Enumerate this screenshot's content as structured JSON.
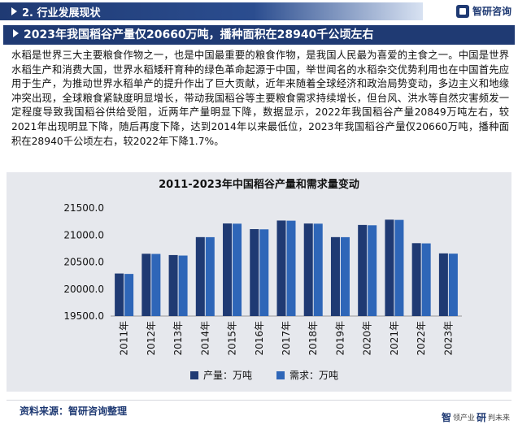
{
  "section": {
    "title": "2. 行业发展现状"
  },
  "logo": {
    "text": "智研咨询"
  },
  "headline": "2023年我国稻谷产量仅20660万吨，播种面积在28940千公顷左右",
  "paragraph": "水稻是世界三大主要粮食作物之一，也是中国最重要的粮食作物，是我国人民最为喜爱的主食之一。中国是世界水稻生产和消费大国，世界水稻矮秆育种的绿色革命起源于中国，举世闻名的水稻杂交优势利用也在中国首先应用于生产，为推动世界水稻单产的提升作出了巨大贡献，近年来随着全球经济和政治局势变动，多边主义和地缘冲突出现，全球粮食紧缺度明显增长，带动我国稻谷等主要粮食需求持续增长，但台风、洪水等自然灾害频发一定程度导致我国稻谷供给受阻，近两年产量明显下降，数据显示，2022年我国稻谷产量20849万吨左右，较2021年出现明显下降，随后再度下降，达到2014年以来最低位，2023年我国稻谷产量仅20660万吨，播种面积在28940千公顷左右，较2022年下降1.7%。",
  "colors": {
    "production": "#1f3a73",
    "demand": "#2e66b8",
    "accent": "#1f3a73"
  },
  "chart_data": {
    "type": "bar",
    "title": "2011-2023年中国稻谷产量和需求量变动",
    "categories": [
      "2011年",
      "2012年",
      "2013年",
      "2014年",
      "2015年",
      "2016年",
      "2017年",
      "2018年",
      "2019年",
      "2020年",
      "2021年",
      "2022年",
      "2023年"
    ],
    "series": [
      {
        "name": "产量：万吨",
        "values": [
          20288,
          20653,
          20629,
          20961,
          21214,
          21109,
          21268,
          21213,
          20961,
          21186,
          21284,
          20849,
          20660
        ]
      },
      {
        "name": "需求：万吨",
        "values": [
          20280,
          20650,
          20620,
          20960,
          21210,
          21105,
          21265,
          21210,
          20960,
          21180,
          21280,
          20845,
          20655
        ]
      }
    ],
    "yticks": [
      "21500.0",
      "21000.0",
      "20500.0",
      "20000.0",
      "19500.0"
    ],
    "ylim": [
      19500,
      21500
    ],
    "legend": "bottom-center"
  },
  "source": "资料来源：智研咨询整理",
  "footer_logo": {
    "main1": "智",
    "small1": "领产业",
    "main2": "研",
    "small2": "判未来"
  }
}
